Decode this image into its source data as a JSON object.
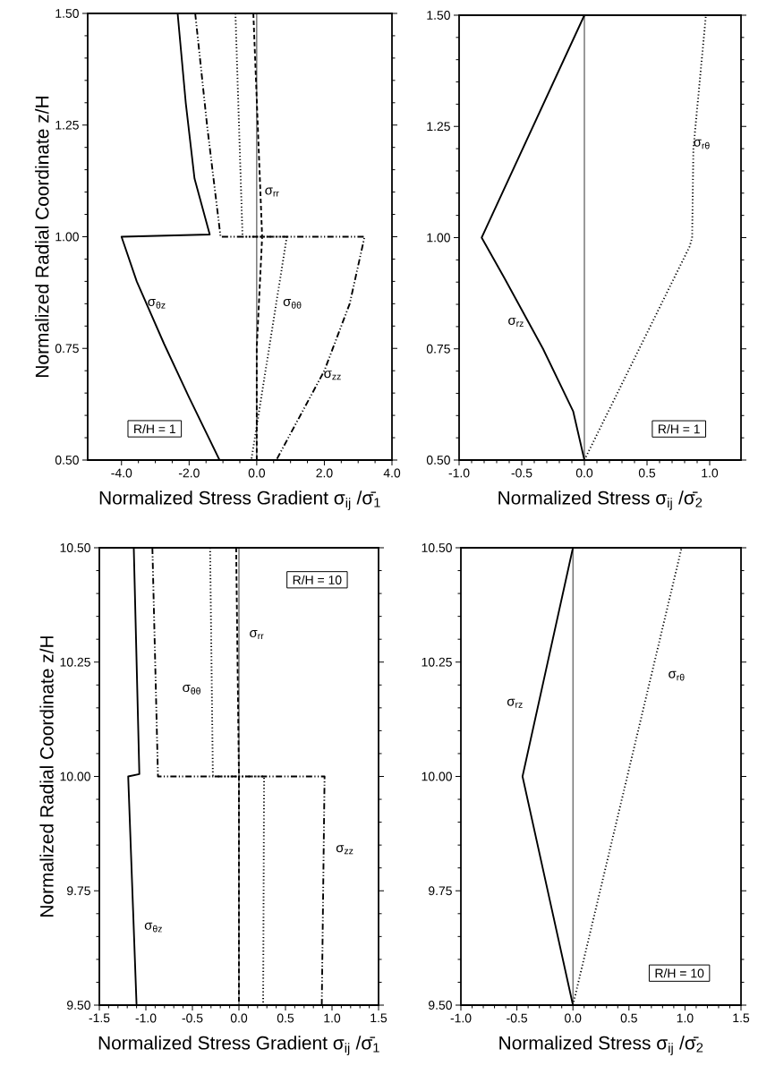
{
  "chart_data": [
    {
      "type": "line",
      "xlabel": "Normalized Stress Gradient σ$_{ij}$ /σ̄$_{1}$",
      "ylabel": "Normalized Radial Coordinate z/H",
      "xlim": [
        -5.0,
        4.0
      ],
      "ylim": [
        0.5,
        1.5
      ],
      "xticks": [
        {
          "value": -4,
          "label": "-4.0"
        },
        {
          "value": -2,
          "label": "-2.0"
        },
        {
          "value": 0,
          "label": "0.0"
        },
        {
          "value": 2,
          "label": "2.0"
        },
        {
          "value": 4,
          "label": "4.0"
        }
      ],
      "yticks": [
        {
          "value": 0.5,
          "label": "0.50"
        },
        {
          "value": 0.75,
          "label": "0.75"
        },
        {
          "value": 1.0,
          "label": "1.00"
        },
        {
          "value": 1.25,
          "label": "1.25"
        },
        {
          "value": 1.5,
          "label": "1.50"
        }
      ],
      "series": [
        {
          "color": "#000000",
          "line_style": "solid",
          "x": [
            -2.34,
            -2.1,
            -1.84,
            -1.39,
            -4.0,
            -3.55,
            -2.74,
            -2.0,
            -1.1
          ],
          "values": [
            1.5,
            1.3,
            1.13,
            1.005,
            1.0,
            0.9,
            0.76,
            0.64,
            0.5
          ]
        },
        {
          "color": "#000000",
          "line_style": "dashdotdotted",
          "x": [
            -1.82,
            -1.47,
            -1.07,
            3.19,
            2.75,
            2.0,
            0.58
          ],
          "values": [
            1.5,
            1.25,
            1.0,
            1.0,
            0.85,
            0.7,
            0.5
          ]
        },
        {
          "color": "#000000",
          "line_style": "dotted",
          "x": [
            -0.63,
            -0.42,
            0.89,
            -0.16
          ],
          "values": [
            1.5,
            1.0,
            1.0,
            0.5
          ]
        },
        {
          "color": "#000000",
          "line_style": "dashed",
          "x": [
            -0.1,
            0.16,
            0.0,
            0.0
          ],
          "values": [
            1.5,
            1.0,
            0.75,
            0.5
          ]
        }
      ],
      "ref_lines": [
        {
          "axis": "x",
          "value": 0
        }
      ],
      "annotations": [
        "σ$_{rr}$",
        "σ$_{θz}$",
        "σ$_{θθ}$",
        "σ$_{zz}$",
        "R/H = 1"
      ]
    },
    {
      "type": "line",
      "xlabel": "Normalized Stress σ$_{ij}$ /σ̄$_{2}$",
      "xlim": [
        -1.0,
        1.25
      ],
      "ylim": [
        0.5,
        1.5
      ],
      "xticks": [
        {
          "value": -1,
          "label": "-1.0"
        },
        {
          "value": -0.5,
          "label": "-0.5"
        },
        {
          "value": 0,
          "label": "0.0"
        },
        {
          "value": 0.5,
          "label": "0.5"
        },
        {
          "value": 1,
          "label": "1.0"
        }
      ],
      "yticks": [
        {
          "value": 0.5,
          "label": "0.50"
        },
        {
          "value": 0.75,
          "label": "0.75"
        },
        {
          "value": 1.0,
          "label": "1.00"
        },
        {
          "value": 1.25,
          "label": "1.25"
        },
        {
          "value": 1.5,
          "label": "1.50"
        }
      ],
      "series": [
        {
          "color": "#000000",
          "line_style": "solid",
          "x": [
            0.0,
            -0.82,
            -0.64,
            -0.33,
            -0.09,
            0.0
          ],
          "values": [
            1.5,
            1.0,
            0.91,
            0.75,
            0.61,
            0.5
          ]
        },
        {
          "color": "#000000",
          "line_style": "dotted",
          "x": [
            0.0,
            0.84,
            0.86,
            0.87,
            0.97
          ],
          "values": [
            0.5,
            0.98,
            1.0,
            1.2,
            1.5
          ]
        }
      ],
      "ref_lines": [
        {
          "axis": "x",
          "value": 0
        }
      ],
      "annotations": [
        "σ$_{rz}$",
        "σ$_{rθ}$",
        "R/H = 1"
      ]
    },
    {
      "type": "line",
      "xlabel": "Normalized Stress Gradient σ$_{ij}$ /σ̄$_{1}$",
      "ylabel": "Normalized Radial Coordinate z/H",
      "xlim": [
        -1.5,
        1.5
      ],
      "ylim": [
        9.5,
        10.5
      ],
      "xticks": [
        {
          "value": -1.5,
          "label": "-1.5"
        },
        {
          "value": -1,
          "label": "-1.0"
        },
        {
          "value": -0.5,
          "label": "-0.5"
        },
        {
          "value": 0,
          "label": "0.0"
        },
        {
          "value": 0.5,
          "label": "0.5"
        },
        {
          "value": 1,
          "label": "1.0"
        },
        {
          "value": 1.5,
          "label": "1.5"
        }
      ],
      "yticks": [
        {
          "value": 9.5,
          "label": "9.50"
        },
        {
          "value": 9.75,
          "label": "9.75"
        },
        {
          "value": 10,
          "label": "10.00"
        },
        {
          "value": 10.25,
          "label": "10.25"
        },
        {
          "value": 10.5,
          "label": "10.50"
        }
      ],
      "series": [
        {
          "color": "#000000",
          "line_style": "solid",
          "x": [
            -1.13,
            -1.07,
            -1.19,
            -1.1
          ],
          "values": [
            10.5,
            10.005,
            10.0,
            9.5
          ]
        },
        {
          "color": "#000000",
          "line_style": "dashdotdotted",
          "x": [
            -0.93,
            -0.87,
            0.92,
            0.89
          ],
          "values": [
            10.5,
            10.0,
            10.0,
            9.5
          ]
        },
        {
          "color": "#000000",
          "line_style": "dotted",
          "x": [
            -0.31,
            -0.28,
            0.27,
            0.26
          ],
          "values": [
            10.5,
            10.0,
            10.0,
            9.5
          ]
        },
        {
          "color": "#000000",
          "line_style": "dashed",
          "x": [
            -0.03,
            0.0,
            0.0
          ],
          "values": [
            10.5,
            10.0,
            9.5
          ]
        }
      ],
      "ref_lines": [
        {
          "axis": "x",
          "value": 0
        }
      ],
      "annotations": [
        "σ$_{rr}$",
        "σ$_{θθ}$",
        "σ$_{zz}$",
        "σ$_{θz}$",
        "R/H = 10"
      ]
    },
    {
      "type": "line",
      "xlabel": "Normalized Stress σ$_{ij}$ /σ̄$_{2}$",
      "xlim": [
        -1.0,
        1.5
      ],
      "ylim": [
        9.5,
        10.5
      ],
      "xticks": [
        {
          "value": -1,
          "label": "-1.0"
        },
        {
          "value": -0.5,
          "label": "-0.5"
        },
        {
          "value": 0,
          "label": "0.0"
        },
        {
          "value": 0.5,
          "label": "0.5"
        },
        {
          "value": 1,
          "label": "1.0"
        },
        {
          "value": 1.5,
          "label": "1.5"
        }
      ],
      "yticks": [
        {
          "value": 9.5,
          "label": "9.50"
        },
        {
          "value": 9.75,
          "label": "9.75"
        },
        {
          "value": 10,
          "label": "10.00"
        },
        {
          "value": 10.25,
          "label": "10.25"
        },
        {
          "value": 10.5,
          "label": "10.50"
        }
      ],
      "series": [
        {
          "color": "#000000",
          "line_style": "solid",
          "x": [
            0.0,
            -0.45,
            0.0
          ],
          "values": [
            10.5,
            10.0,
            9.5
          ]
        },
        {
          "color": "#000000",
          "line_style": "dotted",
          "x": [
            0.0,
            0.97
          ],
          "values": [
            9.5,
            10.5
          ]
        }
      ],
      "ref_lines": [
        {
          "axis": "x",
          "value": 0
        }
      ],
      "annotations": [
        "σ$_{rz}$",
        "σ$_{rθ}$",
        "R/H = 10"
      ]
    }
  ]
}
